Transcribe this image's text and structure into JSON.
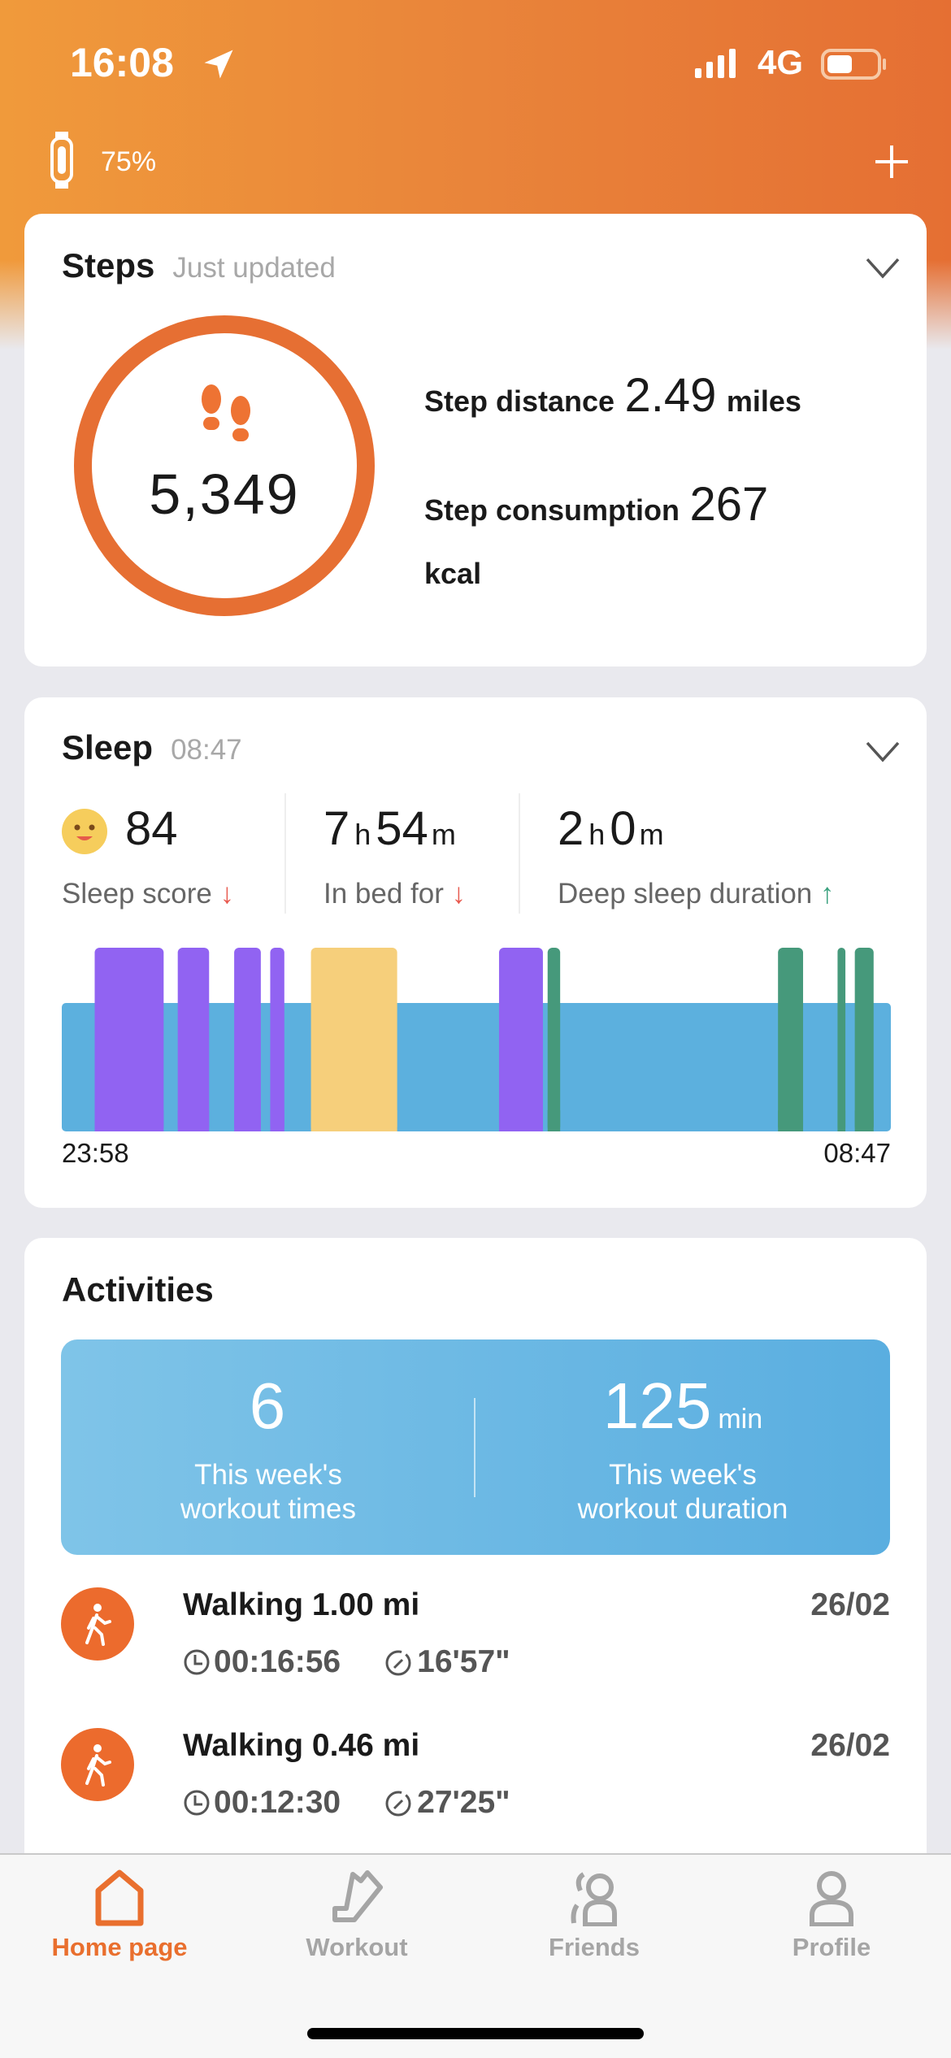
{
  "status_bar": {
    "time": "16:08",
    "network": "4G"
  },
  "header": {
    "device_battery": "75%"
  },
  "steps": {
    "title": "Steps",
    "subtitle": "Just updated",
    "count": "5,349",
    "distance_label": "Step distance",
    "distance_value": "2.49",
    "distance_unit": "miles",
    "consumption_label": "Step consumption",
    "consumption_value": "267",
    "consumption_unit": "kcal"
  },
  "sleep": {
    "title": "Sleep",
    "subtitle": "08:47",
    "score": "84",
    "score_label": "Sleep score",
    "score_trend": "down",
    "inbed_h": "7",
    "inbed_m": "54",
    "inbed_label": "In bed for",
    "inbed_trend": "down",
    "deep_h": "2",
    "deep_m": "0",
    "deep_label": "Deep sleep duration",
    "deep_trend": "up",
    "unit_h": "h",
    "unit_m": "m",
    "start": "23:58",
    "end": "08:47",
    "segments": [
      {
        "start": "00:19",
        "end": "01:03",
        "color": "#9163f2"
      },
      {
        "start": "01:12",
        "end": "01:32",
        "color": "#9163f2"
      },
      {
        "start": "01:48",
        "end": "02:05",
        "color": "#9163f2"
      },
      {
        "start": "02:11",
        "end": "02:20",
        "color": "#9163f2"
      },
      {
        "start": "02:37",
        "end": "03:32",
        "color": "#f6cf7b"
      },
      {
        "start": "04:37",
        "end": "05:05",
        "color": "#9163f2"
      },
      {
        "start": "05:08",
        "end": "05:16",
        "color": "#46997b"
      },
      {
        "start": "07:35",
        "end": "07:51",
        "color": "#46997b"
      },
      {
        "start": "08:13",
        "end": "08:18",
        "color": "#46997b"
      },
      {
        "start": "08:24",
        "end": "08:36",
        "color": "#46997b"
      }
    ],
    "base_color": "#5cb0de"
  },
  "activities": {
    "title": "Activities",
    "times_value": "6",
    "times_label": "This week's workout times",
    "duration_value": "125",
    "duration_unit": "min",
    "duration_label": "This week's workout duration",
    "items": [
      {
        "title": "Walking 1.00 mi",
        "date": "26/02",
        "duration": "00:16:56",
        "pace": "16'57\""
      },
      {
        "title": "Walking 0.46 mi",
        "date": "26/02",
        "duration": "00:12:30",
        "pace": "27'25\""
      }
    ]
  },
  "nav": [
    {
      "label": "Home page",
      "active": true
    },
    {
      "label": "Workout"
    },
    {
      "label": "Friends"
    },
    {
      "label": "Profile"
    }
  ],
  "colors": {
    "accent": "#e96f2e",
    "up": "#3aa17e",
    "down": "#e85a4f"
  }
}
